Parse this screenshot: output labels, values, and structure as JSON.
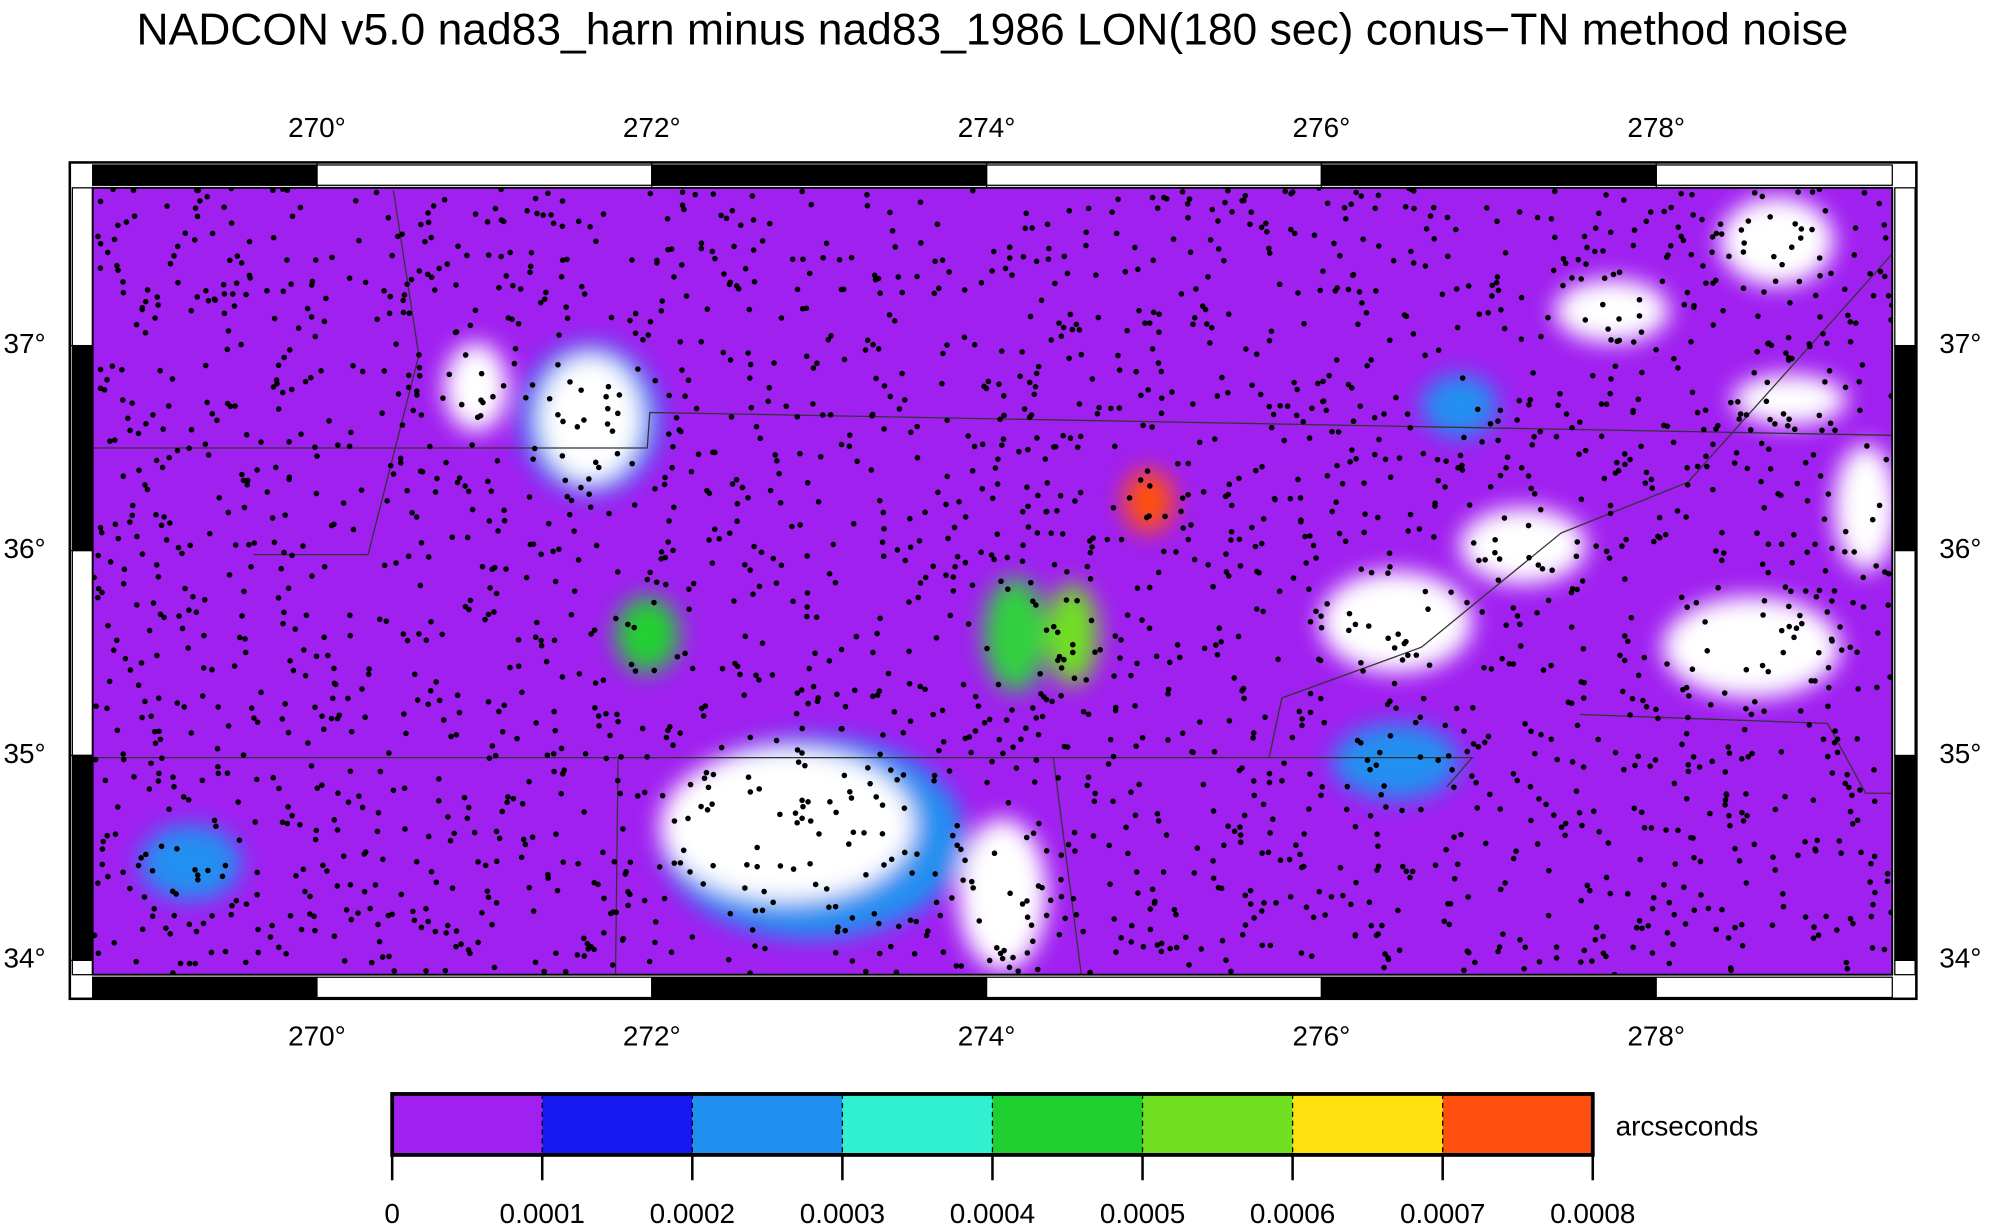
{
  "title": "NADCON v5.0 nad83_harn minus nad83_1986 LON(180 sec) conus−TN method noise",
  "map": {
    "lon_range": [
      268.66,
      279.41
    ],
    "lat_range": [
      33.93,
      37.77
    ],
    "lon_ticks": [
      {
        "value": 270,
        "label": "270°"
      },
      {
        "value": 272,
        "label": "272°"
      },
      {
        "value": 274,
        "label": "274°"
      },
      {
        "value": 276,
        "label": "276°"
      },
      {
        "value": 278,
        "label": "278°"
      }
    ],
    "lat_ticks": [
      {
        "value": 34,
        "label": "34°"
      },
      {
        "value": 35,
        "label": "35°"
      },
      {
        "value": 36,
        "label": "36°"
      },
      {
        "value": 37,
        "label": "37°"
      }
    ]
  },
  "colorbar": {
    "label": "arcseconds",
    "ticks": [
      0,
      0.0001,
      0.0002,
      0.0003,
      0.0004,
      0.0005,
      0.0006,
      0.0007,
      0.0008
    ],
    "colors": [
      "#a020f0",
      "#1818f0",
      "#2090f0",
      "#30f0d0",
      "#20d030",
      "#70e020",
      "#ffe010",
      "#ff5010"
    ]
  }
}
